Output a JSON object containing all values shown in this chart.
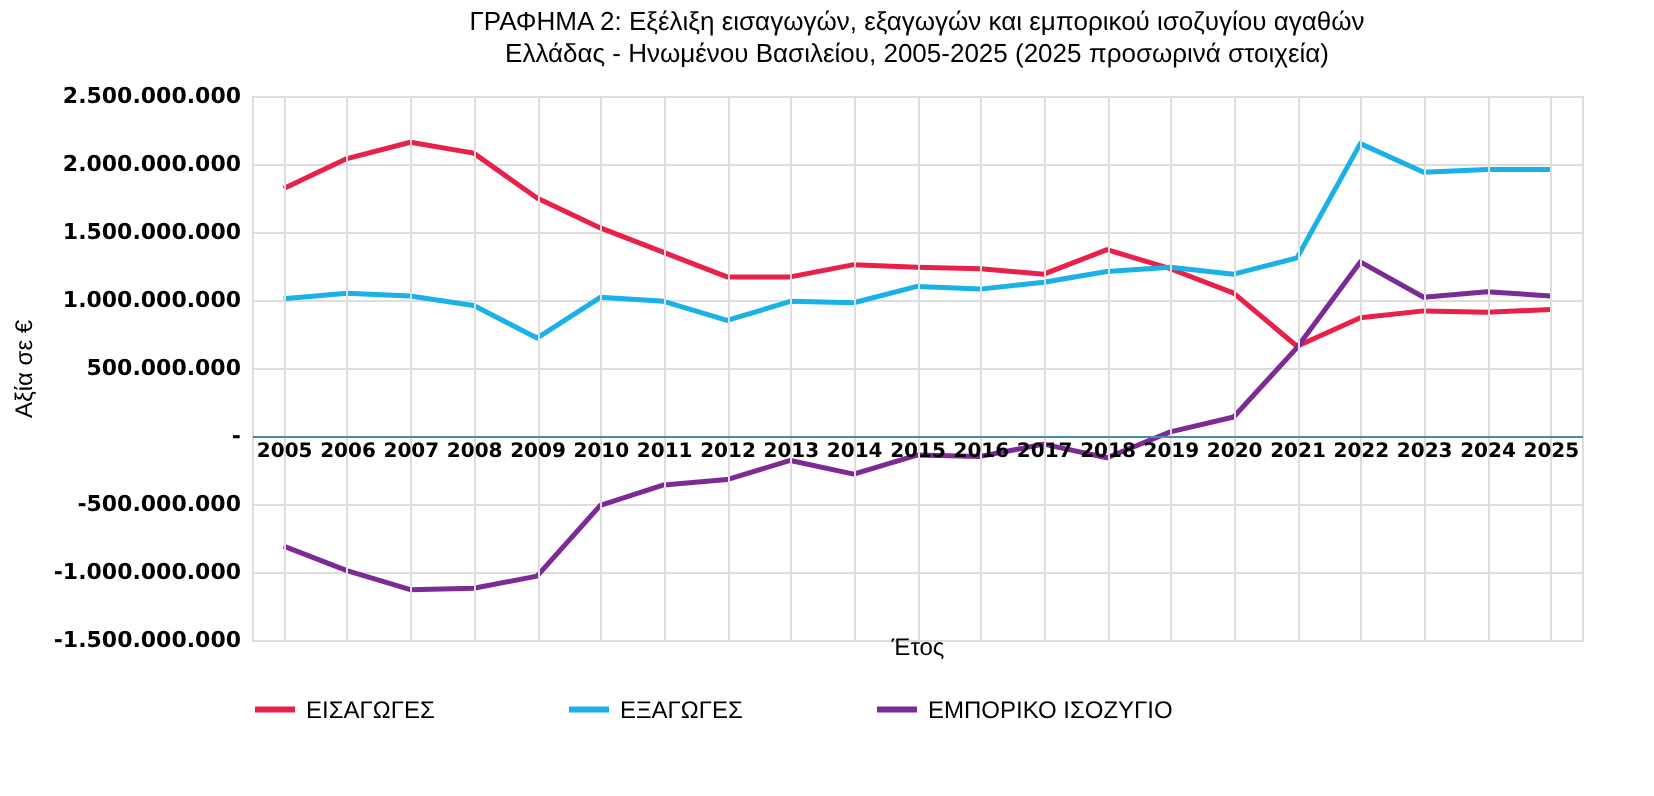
{
  "chart_data": {
    "type": "line",
    "title": "ΓΡΑΦΗΜΑ 2: Εξέλιξη εισαγωγών, εξαγωγών και εμπορικού ισοζυγίου αγαθών",
    "subtitle": "Ελλάδας - Ηνωμένου Βασιλείου, 2005-2025 (2025 προσωρινά στοιχεία)",
    "xlabel": "Έτος",
    "ylabel": "Αξία σε €",
    "categories": [
      "2005",
      "2006",
      "2007",
      "2008",
      "2009",
      "2010",
      "2011",
      "2012",
      "2013",
      "2014",
      "2015",
      "2016",
      "2017",
      "2018",
      "2019",
      "2020",
      "2021",
      "2022",
      "2023",
      "2024",
      "2025"
    ],
    "series": [
      {
        "name": "ΕΙΣΑΓΩΓΕΣ",
        "color": "#e8204a",
        "values": [
          1820000000,
          2040000000,
          2160000000,
          2080000000,
          1750000000,
          1530000000,
          1350000000,
          1170000000,
          1170000000,
          1260000000,
          1240000000,
          1230000000,
          1190000000,
          1370000000,
          1230000000,
          1050000000,
          660000000,
          870000000,
          920000000,
          910000000,
          930000000
        ]
      },
      {
        "name": "ΕΞΑΓΩΓΕΣ",
        "color": "#1ab0e8",
        "values": [
          1010000000,
          1050000000,
          1030000000,
          960000000,
          720000000,
          1020000000,
          990000000,
          850000000,
          990000000,
          980000000,
          1100000000,
          1080000000,
          1130000000,
          1210000000,
          1240000000,
          1190000000,
          1310000000,
          2150000000,
          1940000000,
          1960000000,
          1960000000
        ]
      },
      {
        "name": "ΕΜΠΟΡΙΚΟ ΙΣΟΖΥΓΙΟ",
        "color": "#7b2a96",
        "values": [
          -810000000,
          -990000000,
          -1130000000,
          -1120000000,
          -1030000000,
          -510000000,
          -360000000,
          -320000000,
          -180000000,
          -280000000,
          -140000000,
          -150000000,
          -60000000,
          -160000000,
          30000000,
          140000000,
          650000000,
          1280000000,
          1020000000,
          1060000000,
          1030000000
        ]
      }
    ],
    "ylim": [
      -1500000000,
      2500000000
    ],
    "yticks": [
      {
        "value": -1500000000,
        "label": "-1.500.000.000"
      },
      {
        "value": -1000000000,
        "label": "-1.000.000.000"
      },
      {
        "value": -500000000,
        "label": "-500.000.000"
      },
      {
        "value": 0,
        "label": "-"
      },
      {
        "value": 500000000,
        "label": "500.000.000"
      },
      {
        "value": 1000000000,
        "label": "1.000.000.000"
      },
      {
        "value": 1500000000,
        "label": "1.500.000.000"
      },
      {
        "value": 2000000000,
        "label": "2.000.000.000"
      },
      {
        "value": 2500000000,
        "label": "2.500.000.000"
      }
    ],
    "grid": true,
    "legend": "bottom",
    "line_style": "solid"
  }
}
